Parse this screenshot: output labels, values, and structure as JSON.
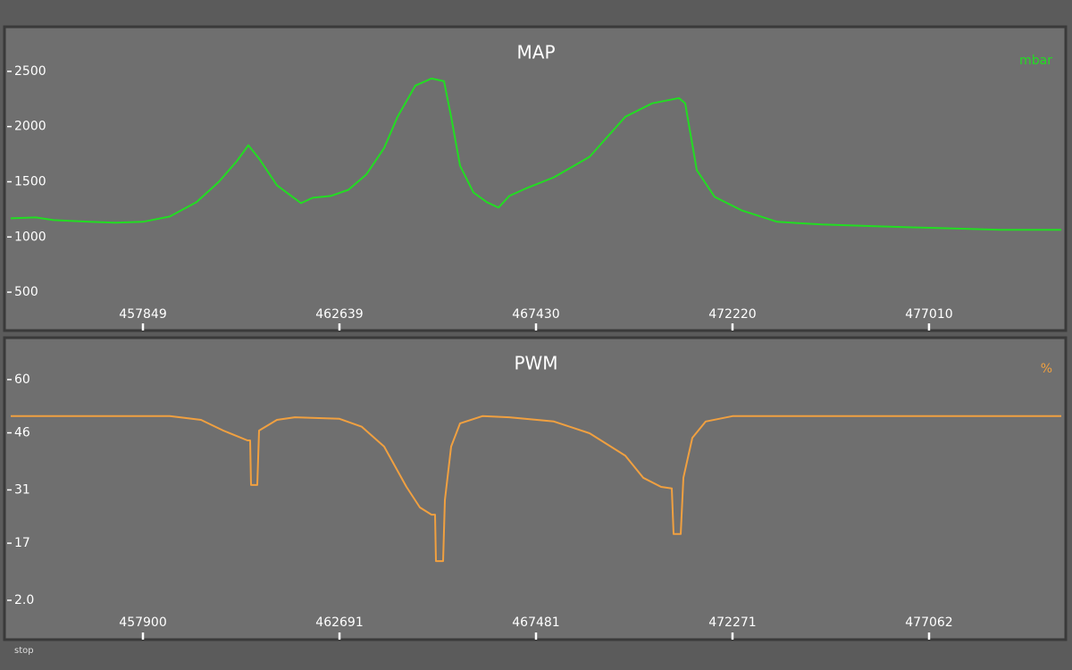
{
  "chart_data": [
    {
      "type": "line",
      "title": "MAP",
      "unit": "mbar",
      "color": "#22dd22",
      "x": [
        454626,
        455236,
        455672,
        456543,
        457196,
        457849,
        458502,
        459156,
        459700,
        460135,
        460418,
        460680,
        461115,
        461703,
        461986,
        462422,
        462857,
        463293,
        463728,
        464055,
        464490,
        464882,
        465187,
        465361,
        465579,
        465906,
        466232,
        466515,
        466777,
        467212,
        467866,
        468737,
        469608,
        470261,
        470914,
        471066,
        471350,
        471785,
        472438,
        473309,
        474398,
        475705,
        477229,
        478753,
        480234
      ],
      "values": [
        1169,
        1177,
        1153,
        1137,
        1129,
        1137,
        1185,
        1315,
        1500,
        1686,
        1831,
        1710,
        1468,
        1306,
        1355,
        1371,
        1427,
        1565,
        1806,
        2089,
        2371,
        2435,
        2411,
        2089,
        1645,
        1403,
        1315,
        1266,
        1371,
        1444,
        1540,
        1726,
        2089,
        2210,
        2258,
        2210,
        1605,
        1363,
        1242,
        1137,
        1113,
        1097,
        1081,
        1065,
        1065
      ],
      "xlim": [
        454626,
        480234
      ],
      "xticks": [
        457849,
        462639,
        467430,
        472220,
        477010
      ],
      "ylim": [
        185,
        2855
      ],
      "yticks": [
        500,
        1000,
        1500,
        2000,
        2500
      ]
    },
    {
      "type": "line",
      "title": "PWM",
      "unit": "%",
      "color": "#f0a040",
      "x": [
        454677,
        458553,
        459315,
        459860,
        460448,
        460513,
        460535,
        460687,
        460731,
        461166,
        461602,
        462691,
        463235,
        463779,
        464324,
        464650,
        464933,
        465020,
        465042,
        465216,
        465260,
        465412,
        465630,
        466175,
        466828,
        467917,
        468788,
        469659,
        470094,
        470530,
        470791,
        470835,
        471009,
        471074,
        471292,
        471618,
        472272,
        480285
      ],
      "values": [
        50.4,
        50.4,
        49.4,
        46.6,
        44.0,
        44.0,
        32.3,
        32.3,
        46.6,
        49.4,
        50.1,
        49.7,
        47.6,
        42.4,
        31.8,
        26.4,
        24.5,
        24.5,
        12.3,
        12.3,
        28.3,
        42.4,
        48.5,
        50.4,
        50.1,
        49.0,
        45.9,
        40.0,
        34.2,
        31.8,
        31.4,
        19.4,
        19.4,
        34.2,
        44.7,
        49.0,
        50.4,
        50.4
      ],
      "xlim": [
        454677,
        480285
      ],
      "xticks": [
        457900,
        462691,
        467481,
        472271,
        477062
      ],
      "ylim": [
        -7.4,
        69.6
      ],
      "yticks": [
        {
          "value": 2,
          "label": "2.0"
        },
        17,
        31,
        46,
        60
      ]
    }
  ],
  "status": "stop"
}
